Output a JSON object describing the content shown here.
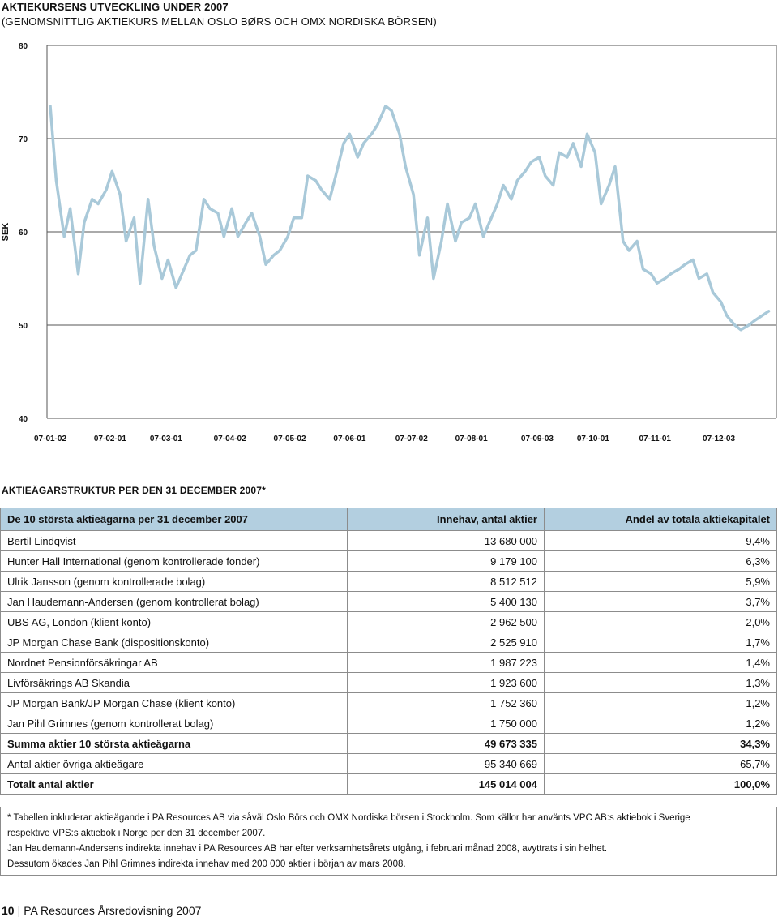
{
  "chart": {
    "title": "AKTIEKURSENS UTVECKLING UNDER 2007",
    "subtitle": "(GENOMSNITTLIG AKTIEKURS MELLAN OSLO BØRS OCH OMX NORDISKA BÖRSEN)"
  },
  "chart_data": {
    "type": "line",
    "title": "AKTIEKURSENS UTVECKLING UNDER 2007",
    "ylabel": "SEK",
    "ylim": [
      40,
      80
    ],
    "yticks": [
      80,
      70,
      60,
      50,
      40
    ],
    "xticks": [
      "07-01-02",
      "07-02-01",
      "07-03-01",
      "07-04-02",
      "07-05-02",
      "07-06-01",
      "07-07-02",
      "07-08-01",
      "07-09-03",
      "07-10-01",
      "07-11-01",
      "07-12-03"
    ],
    "x_range": [
      "07-01-02",
      "07-12-31"
    ],
    "line_color": "#a9c9d9",
    "grid": "horizontal",
    "series": [
      {
        "x": [
          "07-01-02",
          "07-01-05",
          "07-01-09",
          "07-01-12",
          "07-01-16",
          "07-01-19",
          "07-01-23",
          "07-01-26",
          "07-01-30",
          "07-02-02",
          "07-02-06",
          "07-02-09",
          "07-02-13",
          "07-02-16",
          "07-02-20",
          "07-02-23",
          "07-02-27",
          "07-03-02",
          "07-03-06",
          "07-03-09",
          "07-03-13",
          "07-03-16",
          "07-03-20",
          "07-03-23",
          "07-03-27",
          "07-03-30",
          "07-04-03",
          "07-04-06",
          "07-04-10",
          "07-04-13",
          "07-04-17",
          "07-04-20",
          "07-04-24",
          "07-04-27",
          "07-05-01",
          "07-05-04",
          "07-05-08",
          "07-05-11",
          "07-05-15",
          "07-05-18",
          "07-05-22",
          "07-05-25",
          "07-05-29",
          "07-06-01",
          "07-06-05",
          "07-06-08",
          "07-06-12",
          "07-06-15",
          "07-06-19",
          "07-06-22",
          "07-06-26",
          "07-06-29",
          "07-07-03",
          "07-07-06",
          "07-07-10",
          "07-07-13",
          "07-07-17",
          "07-07-20",
          "07-07-24",
          "07-07-27",
          "07-07-31",
          "07-08-03",
          "07-08-07",
          "07-08-10",
          "07-08-14",
          "07-08-17",
          "07-08-21",
          "07-08-24",
          "07-08-28",
          "07-08-31",
          "07-09-04",
          "07-09-07",
          "07-09-11",
          "07-09-14",
          "07-09-18",
          "07-09-21",
          "07-09-25",
          "07-09-28",
          "07-10-02",
          "07-10-05",
          "07-10-09",
          "07-10-12",
          "07-10-16",
          "07-10-19",
          "07-10-23",
          "07-10-26",
          "07-10-30",
          "07-11-02",
          "07-11-06",
          "07-11-09",
          "07-11-13",
          "07-11-16",
          "07-11-20",
          "07-11-23",
          "07-11-27",
          "07-11-30",
          "07-12-04",
          "07-12-07",
          "07-12-11",
          "07-12-14",
          "07-12-18",
          "07-12-21",
          "07-12-28"
        ],
        "values": [
          73.5,
          65.5,
          59.5,
          62.5,
          55.5,
          61,
          63.5,
          63,
          64.5,
          66.5,
          64,
          59,
          61.5,
          54.5,
          63.5,
          58.5,
          55,
          57,
          54,
          55.5,
          57.5,
          58,
          63.5,
          62.5,
          62,
          59.5,
          62.5,
          59.5,
          61,
          62,
          59.5,
          56.5,
          57.5,
          58,
          59.5,
          61.5,
          61.5,
          66,
          65.5,
          64.5,
          63.5,
          66,
          69.5,
          70.5,
          68,
          69.5,
          70.5,
          71.5,
          73.5,
          73,
          70.5,
          67,
          64,
          57.5,
          61.5,
          55,
          59,
          63,
          59,
          61,
          61.5,
          63,
          59.5,
          61,
          63,
          65,
          63.5,
          65.5,
          66.5,
          67.5,
          68,
          66,
          65,
          68.5,
          68,
          69.5,
          67,
          70.5,
          68.5,
          63,
          65,
          67,
          59,
          58,
          59,
          56,
          55.5,
          54.5,
          55,
          55.5,
          56,
          56.5,
          57,
          55,
          55.5,
          53.5,
          52.5,
          51,
          50,
          49.5,
          50,
          50.5,
          51.5
        ]
      }
    ]
  },
  "ownership": {
    "title": "AKTIEÄGARSTRUKTUR PER DEN 31 DECEMBER 2007*",
    "headers": [
      "De 10 största aktieägarna per 31 december 2007",
      "Innehav, antal aktier",
      "Andel av totala aktiekapitalet"
    ],
    "rows": [
      [
        "Bertil Lindqvist",
        "13 680 000",
        "9,4%"
      ],
      [
        "Hunter Hall International (genom kontrollerade fonder)",
        "9 179 100",
        "6,3%"
      ],
      [
        "Ulrik Jansson (genom kontrollerade bolag)",
        "8 512 512",
        "5,9%"
      ],
      [
        "Jan Haudemann-Andersen (genom kontrollerat bolag)",
        "5 400 130",
        "3,7%"
      ],
      [
        "UBS AG, London (klient konto)",
        "2 962 500",
        "2,0%"
      ],
      [
        "JP Morgan Chase Bank (dispositionskonto)",
        "2 525 910",
        "1,7%"
      ],
      [
        "Nordnet Pensionförsäkringar AB",
        "1 987 223",
        "1,4%"
      ],
      [
        "Livförsäkrings AB Skandia",
        "1 923 600",
        "1,3%"
      ],
      [
        "JP Morgan Bank/JP Morgan Chase (klient konto)",
        "1 752 360",
        "1,2%"
      ],
      [
        "Jan Pihl Grimnes (genom kontrollerat bolag)",
        "1 750 000",
        "1,2%"
      ]
    ],
    "summary": [
      {
        "cells": [
          "Summa aktier 10 största aktieägarna",
          "49 673 335",
          "34,3%"
        ],
        "bold": true
      },
      {
        "cells": [
          "Antal aktier övriga aktieägare",
          "95 340 669",
          "65,7%"
        ],
        "bold": false
      },
      {
        "cells": [
          "Totalt antal aktier",
          "145 014 004",
          "100,0%"
        ],
        "bold": true
      }
    ],
    "footnotes": [
      "* Tabellen inkluderar aktieägande i PA Resources AB via såväl Oslo Börs och OMX Nordiska börsen i Stockholm. Som källor har använts VPC AB:s aktiebok i Sverige",
      "respektive VPS:s aktiebok i Norge per den 31 december 2007.",
      "Jan Haudemann-Andersens indirekta innehav i PA Resources AB har efter verksamhetsårets utgång, i februari månad 2008, avyttrats i sin helhet.",
      "Dessutom ökades Jan Pihl Grimnes indirekta innehav med 200 000 aktier i början av mars 2008."
    ]
  },
  "footer": {
    "page_number": "10",
    "text": "PA Resources Årsredovisning 2007"
  }
}
